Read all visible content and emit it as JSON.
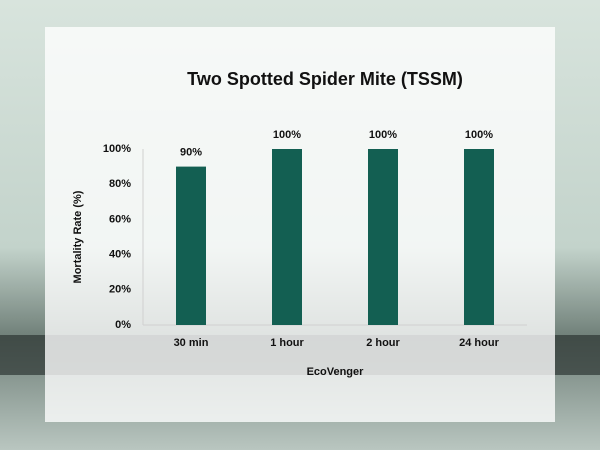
{
  "chart_data": {
    "type": "bar",
    "title": "Two Spotted Spider Mite (TSSM)",
    "x_label": "EcoVenger",
    "y_label": "Mortality Rate (%)",
    "categories": [
      "30 min",
      "1 hour",
      "2 hour",
      "24 hour"
    ],
    "values": [
      90,
      100,
      100,
      100
    ],
    "value_labels": [
      "90%",
      "100%",
      "100%",
      "100%"
    ],
    "color": "#135f52",
    "ylim": [
      0,
      100
    ],
    "yticks": [
      {
        "value": 0,
        "label": "0%"
      },
      {
        "value": 20,
        "label": "20%"
      },
      {
        "value": 40,
        "label": "40%"
      },
      {
        "value": 60,
        "label": "60%"
      },
      {
        "value": 80,
        "label": "80%"
      },
      {
        "value": 100,
        "label": "100%"
      }
    ],
    "grid": false
  }
}
